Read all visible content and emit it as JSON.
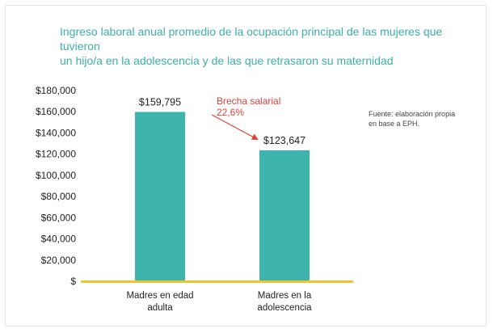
{
  "title_lines": [
    "Ingreso laboral anual promedio de la ocupación principal de las mujeres que tuvieron",
    "un hijo/a en la adolescencia y de las que retrasaron su maternidad"
  ],
  "source_lines": [
    "Fuente: elaboración propia",
    "en base a EPH."
  ],
  "colors": {
    "title": "#3fb0a6",
    "bar": "#3db5ad",
    "baseline": "#f2c12e",
    "annotation": "#e0403c"
  },
  "chart_data": {
    "type": "bar",
    "categories": [
      [
        "Madres en edad",
        "adulta"
      ],
      [
        "Madres en la",
        "adolescencia"
      ]
    ],
    "values": [
      159795,
      123647
    ],
    "value_labels": [
      "$159,795",
      "$123,647"
    ],
    "ylim": [
      0,
      180000
    ],
    "yticks": [
      0,
      20000,
      40000,
      60000,
      80000,
      100000,
      120000,
      140000,
      160000,
      180000
    ],
    "ytick_labels": [
      "$",
      "$20,000",
      "$40,000",
      "$60,000",
      "$80,000",
      "$100,000",
      "$120,000",
      "$140,000",
      "$160,000",
      "$180,000"
    ],
    "grid": false,
    "annotation": {
      "lines": [
        "Brecha salarial",
        "22,6%"
      ],
      "arrow": "from first bar to second bar"
    }
  }
}
